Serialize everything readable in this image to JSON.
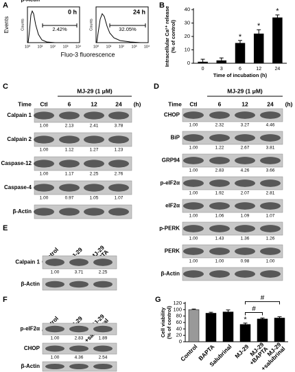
{
  "chart_data": [
    {
      "type": "bar",
      "panel_label": "B",
      "y_label": [
        "Intracellular Ca²⁺ release",
        "(% of control)"
      ],
      "x_label": "Time of incubation (h)",
      "categories": [
        "0",
        "3",
        "6",
        "12",
        "24"
      ],
      "values": [
        1,
        2,
        15,
        22,
        34
      ],
      "errors": [
        2,
        2,
        2,
        3,
        2
      ],
      "markers": [
        null,
        null,
        "*",
        "*",
        "*"
      ],
      "colors": [
        "#000000",
        "#000000",
        "#000000",
        "#000000",
        "#000000"
      ],
      "ylim": [
        0,
        40
      ],
      "yticks": [
        0,
        10,
        20,
        30,
        40
      ]
    },
    {
      "type": "bar",
      "panel_label": "G",
      "y_label": [
        "Cell viability",
        "(% of control)"
      ],
      "categories": [
        "Control",
        "BAPTA",
        "Salubrinal",
        "MJ-29",
        [
          "MJ-29",
          "+BAPTA"
        ],
        [
          "MJ-29",
          "+salubrinal"
        ]
      ],
      "values": [
        100,
        89,
        93,
        54,
        71,
        74
      ],
      "errors": [
        2,
        3,
        6,
        4,
        3,
        4
      ],
      "markers": [
        null,
        null,
        null,
        "*",
        null,
        null
      ],
      "brackets": [
        {
          "text": "#",
          "span": [
            3,
            4
          ]
        },
        {
          "text": "#",
          "span": [
            3,
            5
          ]
        }
      ],
      "colors": [
        "#999999",
        "#000000",
        "#000000",
        "#000000",
        "#000000",
        "#000000"
      ],
      "ylim": [
        0,
        120
      ],
      "yticks": [
        0,
        20,
        40,
        60,
        80,
        100,
        120
      ]
    }
  ],
  "panels": {
    "A": {
      "letter": "A",
      "y_label": "Events",
      "x_label": "Fluo-3 fluorescence",
      "x_ticks": [
        "10⁰",
        "10¹",
        "10²",
        "10³",
        "10⁴"
      ],
      "plots": [
        {
          "title": "0 h",
          "gate": "2.42%",
          "y_axis": "Counts"
        },
        {
          "title": "24 h",
          "gate": "32.05%",
          "y_axis": "Counts"
        }
      ]
    },
    "C": {
      "letter": "C",
      "treatment": "MJ-29 (1 μM)",
      "time_label": "Time",
      "unit": "(h)",
      "lanes": [
        "Ctl",
        "6",
        "12",
        "24"
      ],
      "blots": [
        {
          "protein": "Calpain 1",
          "ratios": [
            "1.00",
            "2.13",
            "2.41",
            "3.78"
          ]
        },
        {
          "protein": "Calpain 2",
          "ratios": [
            "1.00",
            "1.12",
            "1.27",
            "1.23"
          ]
        },
        {
          "protein": "Caspase-12",
          "ratios": [
            "1.00",
            "1.17",
            "2.25",
            "2.76"
          ]
        },
        {
          "protein": "Caspase-4",
          "ratios": [
            "1.00",
            "0.97",
            "1.05",
            "1.07"
          ]
        },
        {
          "protein": "β-Actin"
        }
      ]
    },
    "D": {
      "letter": "D",
      "treatment": "MJ-29 (1 μM)",
      "time_label": "Time",
      "unit": "(h)",
      "lanes": [
        "Ctl",
        "6",
        "12",
        "24"
      ],
      "blots": [
        {
          "protein": "CHOP",
          "ratios": [
            "1.00",
            "2.32",
            "3.27",
            "4.46"
          ]
        },
        {
          "protein": "BiP",
          "ratios": [
            "1.00",
            "1.22",
            "2.67",
            "3.81"
          ]
        },
        {
          "protein": "GRP94",
          "ratios": [
            "1.00",
            "2.83",
            "4.26",
            "3.66"
          ]
        },
        {
          "protein": "p-eIF2α",
          "ratios": [
            "1.00",
            "1.92",
            "2.07",
            "2.81"
          ]
        },
        {
          "protein": "eIF2α",
          "ratios": [
            "1.00",
            "1.06",
            "1.09",
            "1.07"
          ]
        },
        {
          "protein": "p-PERK",
          "ratios": [
            "1.00",
            "1.43",
            "1.36",
            "1.26"
          ]
        },
        {
          "protein": "PERK",
          "ratios": [
            "1.00",
            "1.00",
            "0.98",
            "1.00"
          ]
        },
        {
          "protein": "β-Actin"
        }
      ]
    },
    "E": {
      "letter": "E",
      "lanes": [
        "Control",
        "MJ-29",
        [
          "MJ-29",
          "+BAPTA"
        ]
      ],
      "blots": [
        {
          "protein": "Calpain 1",
          "ratios": [
            "1.00",
            "3.71",
            "2.25"
          ]
        },
        {
          "protein": "β-Actin"
        }
      ]
    },
    "F": {
      "letter": "F",
      "lanes": [
        "Control",
        "MJ-29",
        [
          "MJ-29",
          "+salubrinal"
        ]
      ],
      "blots": [
        {
          "protein": "p-eIF2α",
          "ratios": [
            "1.00",
            "2.83",
            "1.89"
          ]
        },
        {
          "protein": "CHOP",
          "ratios": [
            "1.00",
            "4.36",
            "2.54"
          ]
        },
        {
          "protein": "β-Actin"
        }
      ]
    }
  }
}
